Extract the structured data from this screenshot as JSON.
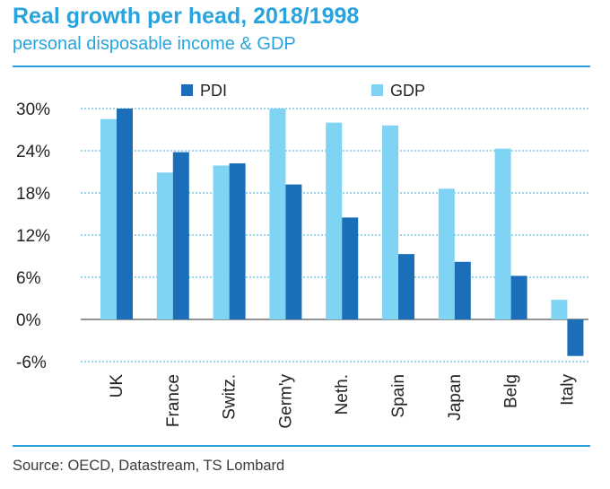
{
  "title": "Real growth per head, 2018/1998",
  "subtitle": "personal disposable income & GDP",
  "source": "Source: OECD, Datastream, TS Lombard",
  "colors": {
    "accent": "#29a3dd",
    "pdi": "#1a6fb8",
    "gdp": "#7fd4f4"
  },
  "chart_data": {
    "type": "bar",
    "categories": [
      "UK",
      "France",
      "Switz.",
      "Germ'y",
      "Neth.",
      "Spain",
      "Japan",
      "Belg",
      "Italy"
    ],
    "series": [
      {
        "name": "PDI",
        "values": [
          30,
          23.8,
          22.2,
          19.2,
          14.5,
          9.3,
          8.2,
          6.2,
          -5.2
        ]
      },
      {
        "name": "GDP",
        "values": [
          28.5,
          20.9,
          21.9,
          30,
          28,
          27.6,
          18.6,
          24.3,
          2.8
        ]
      }
    ],
    "yticks": [
      "30%",
      "24%",
      "18%",
      "12%",
      "6%",
      "0%",
      "-6%"
    ],
    "ylim": [
      -6,
      30
    ],
    "legend_position": "top",
    "grid": true
  }
}
